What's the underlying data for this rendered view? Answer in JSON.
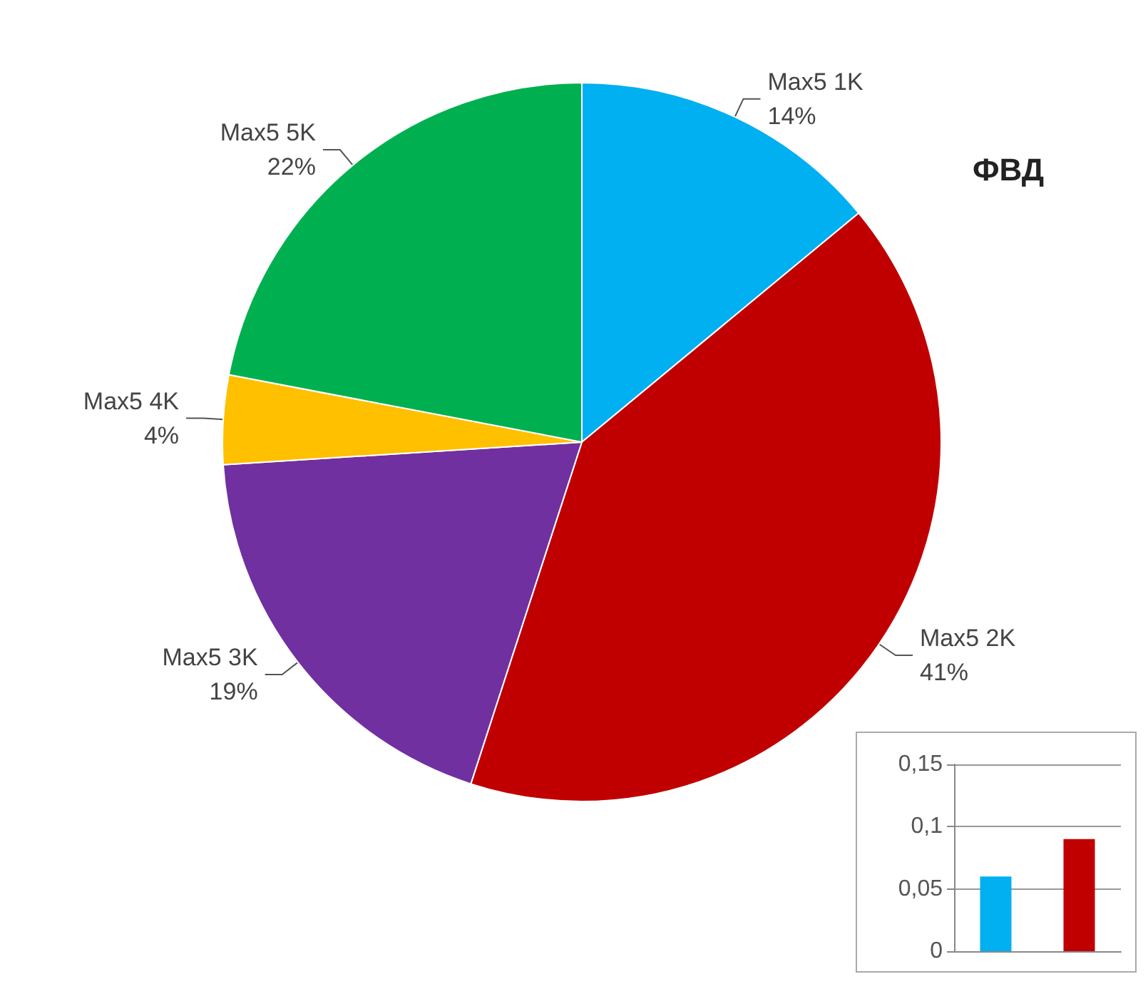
{
  "chart_data": [
    {
      "type": "pie",
      "title": "ФВД",
      "categories": [
        "Max5 1K",
        "Max5 2K",
        "Max5 3K",
        "Max5 4K",
        "Max5 5K"
      ],
      "values": [
        14,
        41,
        19,
        4,
        22
      ],
      "value_labels": [
        "14%",
        "41%",
        "19%",
        "4%",
        "22%"
      ],
      "colors": [
        "#00b0f0",
        "#c00000",
        "#7030a0",
        "#ffc000",
        "#00b050"
      ],
      "legend": false
    },
    {
      "type": "bar",
      "categories": [
        null,
        null
      ],
      "values": [
        0.06,
        0.09
      ],
      "colors": [
        "#00b0f0",
        "#c00000"
      ],
      "ylim": [
        0,
        0.15
      ],
      "yticks": [
        0,
        {
          "value": 0.05,
          "label": "0,05"
        },
        {
          "value": 0.1,
          "label": "0,1"
        },
        {
          "value": 0.15,
          "label": "0,15"
        }
      ],
      "grid": "y",
      "legend": false
    }
  ]
}
